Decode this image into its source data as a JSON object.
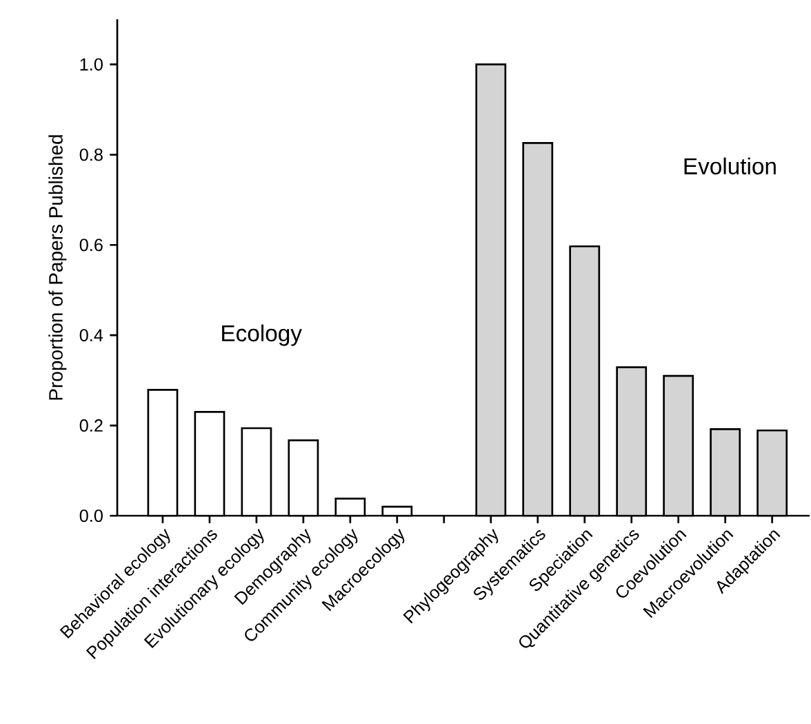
{
  "chart_data": {
    "type": "bar",
    "ylabel": "Proportion of Papers Published",
    "categories": [
      "Behavioral ecology",
      "Population interactions",
      "Evolutionary ecology",
      "Demography",
      "Community ecology",
      "Macroecology",
      null,
      "Phylogeography",
      "Systematics",
      "Speciation",
      "Quantitative genetics",
      "Coevolution",
      "Macroevolution",
      "Adaptation"
    ],
    "values": [
      0.279,
      0.23,
      0.194,
      0.167,
      0.038,
      0.02,
      null,
      1.0,
      0.826,
      0.597,
      0.329,
      0.31,
      0.192,
      0.189
    ],
    "colors": [
      "#ffffff",
      "#ffffff",
      "#ffffff",
      "#ffffff",
      "#ffffff",
      "#ffffff",
      "#ffffff",
      "#d4d4d4",
      "#d4d4d4",
      "#d4d4d4",
      "#d4d4d4",
      "#d4d4d4",
      "#d4d4d4",
      "#d4d4d4"
    ],
    "ylim": [
      0,
      1.1
    ],
    "yticks": [
      {
        "value": 0,
        "label": "0.0"
      },
      {
        "value": 0.2,
        "label": "0.2"
      },
      {
        "value": 0.4,
        "label": "0.4"
      },
      {
        "value": 0.6,
        "label": "0.6"
      },
      {
        "value": 0.8,
        "label": "0.8"
      },
      {
        "value": 1.0,
        "label": "1.0"
      }
    ],
    "annotations": [
      "Ecology",
      "Evolution"
    ]
  }
}
